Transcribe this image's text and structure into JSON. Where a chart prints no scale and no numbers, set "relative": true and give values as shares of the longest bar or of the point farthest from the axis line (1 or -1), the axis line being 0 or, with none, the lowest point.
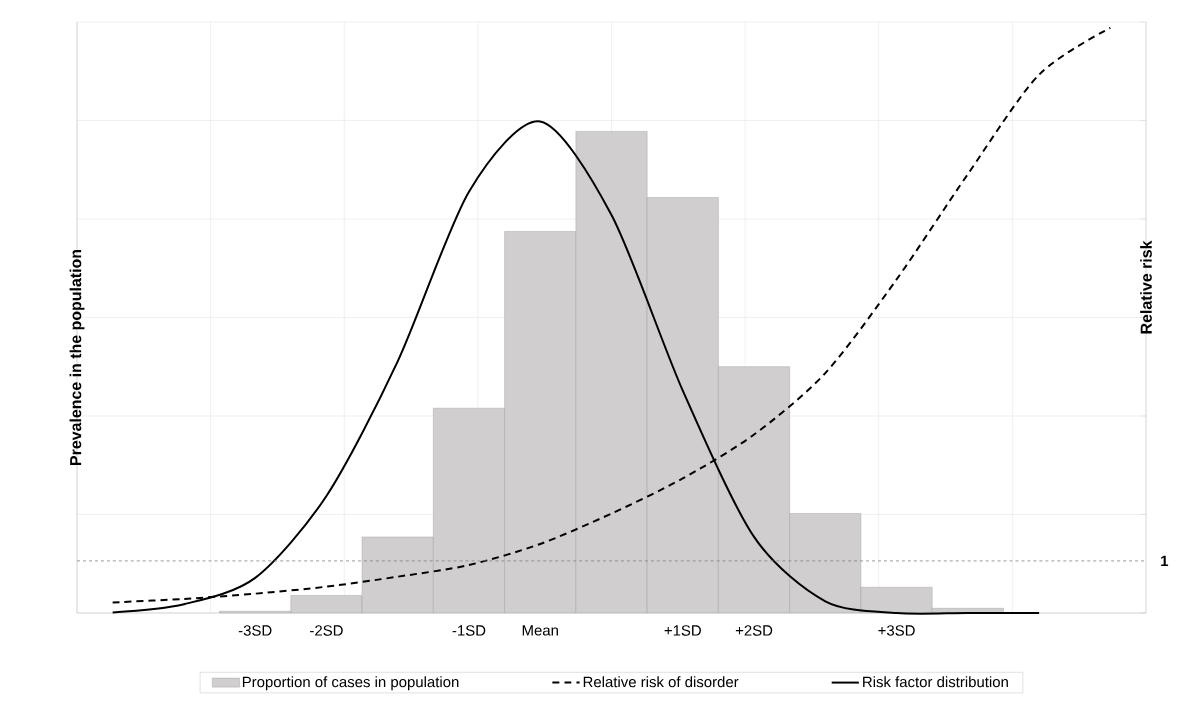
{
  "chart_data": {
    "type": "bar",
    "relative": true,
    "categories": [
      null,
      null,
      "-3SD",
      "-2SD",
      null,
      "-1SD",
      "Mean",
      null,
      "+1SD",
      "+2SD",
      null,
      "+3SD",
      null,
      null,
      null
    ],
    "series": [
      {
        "name": "Proportion of cases in population",
        "color": "#d0cece",
        "values": [
          null,
          null,
          0.003,
          0.03,
          0.13,
          0.35,
          0.652,
          0.823,
          0.71,
          0.421,
          0.17,
          0.044,
          0.008,
          null,
          null
        ]
      },
      {
        "name": "Relative risk of disorder",
        "type": "line",
        "color": "#000000",
        "line_style": "dashed",
        "values": [
          0.018,
          0.024,
          0.033,
          0.045,
          0.062,
          0.082,
          0.118,
          0.17,
          0.23,
          0.305,
          0.41,
          0.57,
          0.75,
          0.92,
          1
        ]
      },
      {
        "name": "Risk factor distribution",
        "type": "line",
        "color": "#000000",
        "line_style": "solid",
        "values": [
          0.001,
          0.015,
          0.06,
          0.2,
          0.43,
          0.72,
          0.84,
          0.68,
          0.38,
          0.13,
          0.02,
          0,
          0,
          0,
          null
        ]
      }
    ],
    "ylabel": "Prevalence in the population",
    "y2label": "Relative risk",
    "ref_lines": [
      {
        "axis": "y",
        "value": 0.089,
        "color": "#808080",
        "line_style": "dashed"
      }
    ],
    "annotations": [
      "1"
    ],
    "grid": true,
    "legend": "bottom",
    "marker": "none"
  }
}
